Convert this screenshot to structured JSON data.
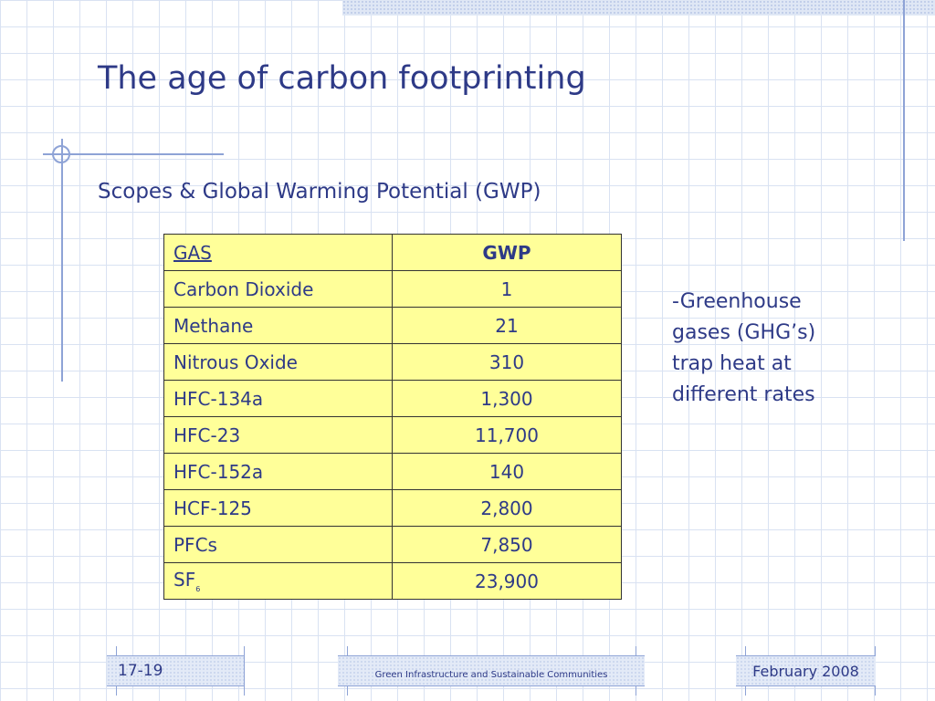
{
  "slide": {
    "title": "The age of carbon footprinting",
    "subtitle": "Scopes & Global Warming Potential (GWP)",
    "table": {
      "headers": [
        "GAS",
        "GWP"
      ],
      "rows": [
        {
          "gas": "Carbon Dioxide",
          "sub": "",
          "gwp": "1"
        },
        {
          "gas": "Methane",
          "sub": "",
          "gwp": "21"
        },
        {
          "gas": "Nitrous Oxide",
          "sub": "",
          "gwp": "310"
        },
        {
          "gas": "HFC-134a",
          "sub": "",
          "gwp": "1,300"
        },
        {
          "gas": "HFC-23",
          "sub": "",
          "gwp": "11,700"
        },
        {
          "gas": "HFC-152a",
          "sub": "",
          "gwp": "140"
        },
        {
          "gas": "HCF-125",
          "sub": "",
          "gwp": "2,800"
        },
        {
          "gas": "PFCs",
          "sub": "",
          "gwp": "7,850"
        },
        {
          "gas": "SF",
          "sub": "6",
          "gwp": "23,900"
        }
      ]
    },
    "note": "-Greenhouse gases (GHG’s) trap heat at different rates"
  },
  "footer": {
    "slide_number": "17-19",
    "course": "Green Infrastructure and Sustainable Communities",
    "date": "February 2008"
  },
  "colors": {
    "text": "#2e3a87",
    "table_fill": "#ffff99",
    "accent_line": "#8ea3d6"
  }
}
